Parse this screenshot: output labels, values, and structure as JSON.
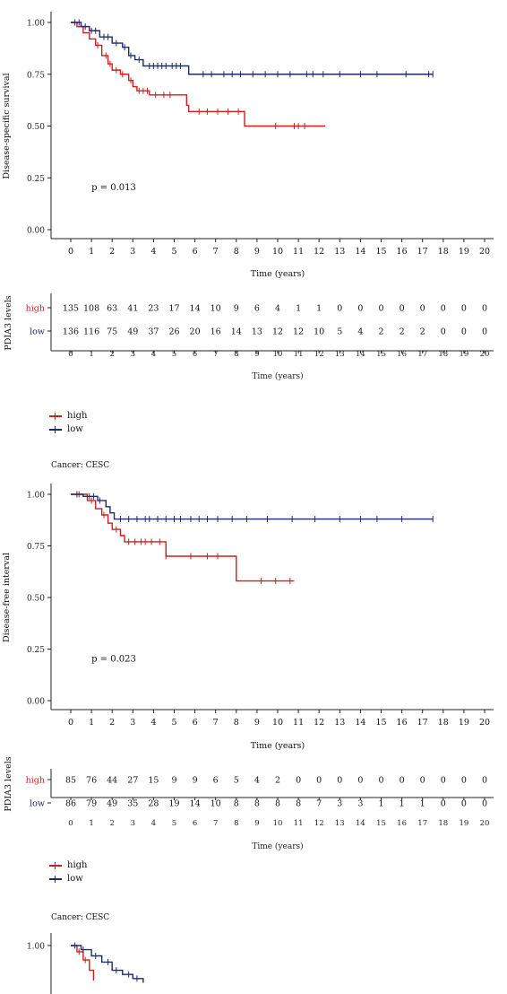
{
  "colors": {
    "high": "#cc1f1f",
    "low": "#1f2a6b",
    "axis": "#222222"
  },
  "chart_data": [
    {
      "type": "line",
      "subtype": "kaplan-meier",
      "ylabel": "Disease-specific survival",
      "xlabel": "Time (years)",
      "xlim": [
        0,
        20
      ],
      "ylim": [
        0,
        1
      ],
      "x_ticks": [
        0,
        1,
        2,
        3,
        4,
        5,
        6,
        7,
        8,
        9,
        10,
        11,
        12,
        13,
        14,
        15,
        16,
        17,
        18,
        19,
        20
      ],
      "y_ticks": [
        "0.00",
        "0.25",
        "0.50",
        "0.75",
        "1.00"
      ],
      "p_value": "p = 0.013",
      "series": [
        {
          "name": "high",
          "color": "#cc1f1f",
          "steps": [
            [
              0,
              1.0
            ],
            [
              0.3,
              0.98
            ],
            [
              0.6,
              0.95
            ],
            [
              0.9,
              0.92
            ],
            [
              1.2,
              0.89
            ],
            [
              1.5,
              0.84
            ],
            [
              1.8,
              0.8
            ],
            [
              2.0,
              0.77
            ],
            [
              2.4,
              0.75
            ],
            [
              2.8,
              0.72
            ],
            [
              3.0,
              0.69
            ],
            [
              3.2,
              0.67
            ],
            [
              3.8,
              0.65
            ],
            [
              4.4,
              0.65
            ],
            [
              5.6,
              0.6
            ],
            [
              5.7,
              0.57
            ],
            [
              7.0,
              0.57
            ],
            [
              8.4,
              0.5
            ],
            [
              12.3,
              0.5
            ]
          ],
          "censor": [
            1.3,
            1.7,
            1.9,
            2.2,
            2.5,
            2.9,
            3.3,
            3.5,
            3.7,
            4.1,
            4.5,
            4.8,
            6.2,
            6.6,
            7.1,
            7.6,
            8.1,
            9.9,
            10.8,
            11.0,
            11.3
          ]
        },
        {
          "name": "low",
          "color": "#1f2a6b",
          "steps": [
            [
              0,
              1.0
            ],
            [
              0.5,
              0.98
            ],
            [
              0.9,
              0.96
            ],
            [
              1.4,
              0.93
            ],
            [
              2.0,
              0.9
            ],
            [
              2.5,
              0.88
            ],
            [
              2.8,
              0.84
            ],
            [
              3.1,
              0.82
            ],
            [
              3.5,
              0.79
            ],
            [
              5.7,
              0.75
            ],
            [
              17.5,
              0.75
            ]
          ],
          "censor": [
            0.2,
            0.4,
            0.7,
            1.0,
            1.2,
            1.6,
            1.8,
            2.2,
            2.6,
            2.9,
            3.3,
            3.8,
            4.0,
            4.2,
            4.4,
            4.6,
            4.9,
            5.1,
            5.3,
            6.4,
            6.8,
            7.4,
            7.8,
            8.2,
            8.8,
            9.4,
            10.0,
            10.6,
            11.4,
            11.7,
            12.2,
            13.0,
            14.0,
            14.8,
            16.2,
            17.3,
            17.5
          ]
        }
      ],
      "risk_table": {
        "ylabel": "PDIA3 levels",
        "xlabel": "Time (years)",
        "rows": [
          {
            "name": "high",
            "values": [
              "135",
              "108",
              "63",
              "41",
              "23",
              "17",
              "14",
              "10",
              "9",
              "6",
              "4",
              "1",
              "1",
              "0",
              "0",
              "0",
              "0",
              "0",
              "0",
              "0",
              "0"
            ]
          },
          {
            "name": "low",
            "values": [
              "136",
              "116",
              "75",
              "49",
              "37",
              "26",
              "20",
              "16",
              "14",
              "13",
              "12",
              "12",
              "10",
              "5",
              "4",
              "2",
              "2",
              "2",
              "0",
              "0",
              "0"
            ]
          }
        ]
      }
    },
    {
      "type": "line",
      "subtype": "kaplan-meier",
      "ylabel": "Disease-free interval",
      "xlabel": "Time (years)",
      "xlim": [
        0,
        20
      ],
      "ylim": [
        0,
        1
      ],
      "x_ticks": [
        0,
        1,
        2,
        3,
        4,
        5,
        6,
        7,
        8,
        9,
        10,
        11,
        12,
        13,
        14,
        15,
        16,
        17,
        18,
        19,
        20
      ],
      "y_ticks": [
        "0.00",
        "0.25",
        "0.50",
        "0.75",
        "1.00"
      ],
      "p_value": "p = 0.023",
      "series": [
        {
          "name": "high",
          "color": "#cc1f1f",
          "steps": [
            [
              0,
              1.0
            ],
            [
              0.8,
              0.97
            ],
            [
              1.2,
              0.93
            ],
            [
              1.5,
              0.9
            ],
            [
              1.8,
              0.86
            ],
            [
              2.0,
              0.83
            ],
            [
              2.4,
              0.8
            ],
            [
              2.6,
              0.77
            ],
            [
              4.6,
              0.7
            ],
            [
              8.0,
              0.58
            ],
            [
              10.8,
              0.58
            ]
          ],
          "censor": [
            0.4,
            1.0,
            1.6,
            2.2,
            2.8,
            3.1,
            3.4,
            3.6,
            3.9,
            4.3,
            4.6,
            5.8,
            6.6,
            7.1,
            9.2,
            9.9,
            10.6
          ]
        },
        {
          "name": "low",
          "color": "#1f2a6b",
          "steps": [
            [
              0,
              1.0
            ],
            [
              0.6,
              0.99
            ],
            [
              1.3,
              0.97
            ],
            [
              1.7,
              0.94
            ],
            [
              1.9,
              0.91
            ],
            [
              2.1,
              0.88
            ],
            [
              17.5,
              0.88
            ]
          ],
          "censor": [
            0.3,
            0.9,
            1.1,
            1.4,
            2.4,
            2.8,
            3.2,
            3.6,
            3.8,
            4.2,
            4.6,
            5.0,
            5.3,
            5.8,
            6.2,
            6.6,
            7.1,
            7.8,
            8.5,
            9.5,
            10.7,
            11.8,
            13.0,
            14.0,
            14.8,
            16.0,
            17.5
          ]
        }
      ],
      "risk_table": {
        "ylabel": "PDIA3 levels",
        "xlabel": "Time (years)",
        "rows": [
          {
            "name": "high",
            "values": [
              "85",
              "76",
              "44",
              "27",
              "15",
              "9",
              "9",
              "6",
              "5",
              "4",
              "2",
              "0",
              "0",
              "0",
              "0",
              "0",
              "0",
              "0",
              "0",
              "0",
              "0"
            ]
          },
          {
            "name": "low",
            "values": [
              "86",
              "79",
              "49",
              "35",
              "28",
              "19",
              "14",
              "10",
              "8",
              "8",
              "8",
              "8",
              "7",
              "3",
              "3",
              "1",
              "1",
              "1",
              "0",
              "0",
              "0"
            ]
          }
        ]
      }
    },
    {
      "type": "line",
      "subtype": "kaplan-meier",
      "partial": true,
      "y_ticks": [
        "1.00"
      ],
      "series": [
        {
          "name": "high",
          "color": "#cc1f1f",
          "steps": [
            [
              0,
              1.0
            ],
            [
              0.3,
              0.97
            ],
            [
              0.6,
              0.93
            ],
            [
              0.9,
              0.88
            ],
            [
              1.1,
              0.83
            ]
          ],
          "censor": [
            0.4,
            0.7
          ]
        },
        {
          "name": "low",
          "color": "#1f2a6b",
          "steps": [
            [
              0,
              1.0
            ],
            [
              0.5,
              0.98
            ],
            [
              1.0,
              0.95
            ],
            [
              1.5,
              0.92
            ],
            [
              2.0,
              0.88
            ],
            [
              2.5,
              0.86
            ],
            [
              3.0,
              0.84
            ],
            [
              3.5,
              0.82
            ]
          ],
          "censor": [
            0.2,
            0.6,
            1.2,
            1.8,
            2.2,
            2.8,
            3.2
          ]
        }
      ]
    }
  ],
  "legend_items": [
    {
      "label": "high",
      "color": "#cc1f1f"
    },
    {
      "label": "low",
      "color": "#1f2a6b"
    }
  ],
  "cancer_label": "Cancer: CESC"
}
